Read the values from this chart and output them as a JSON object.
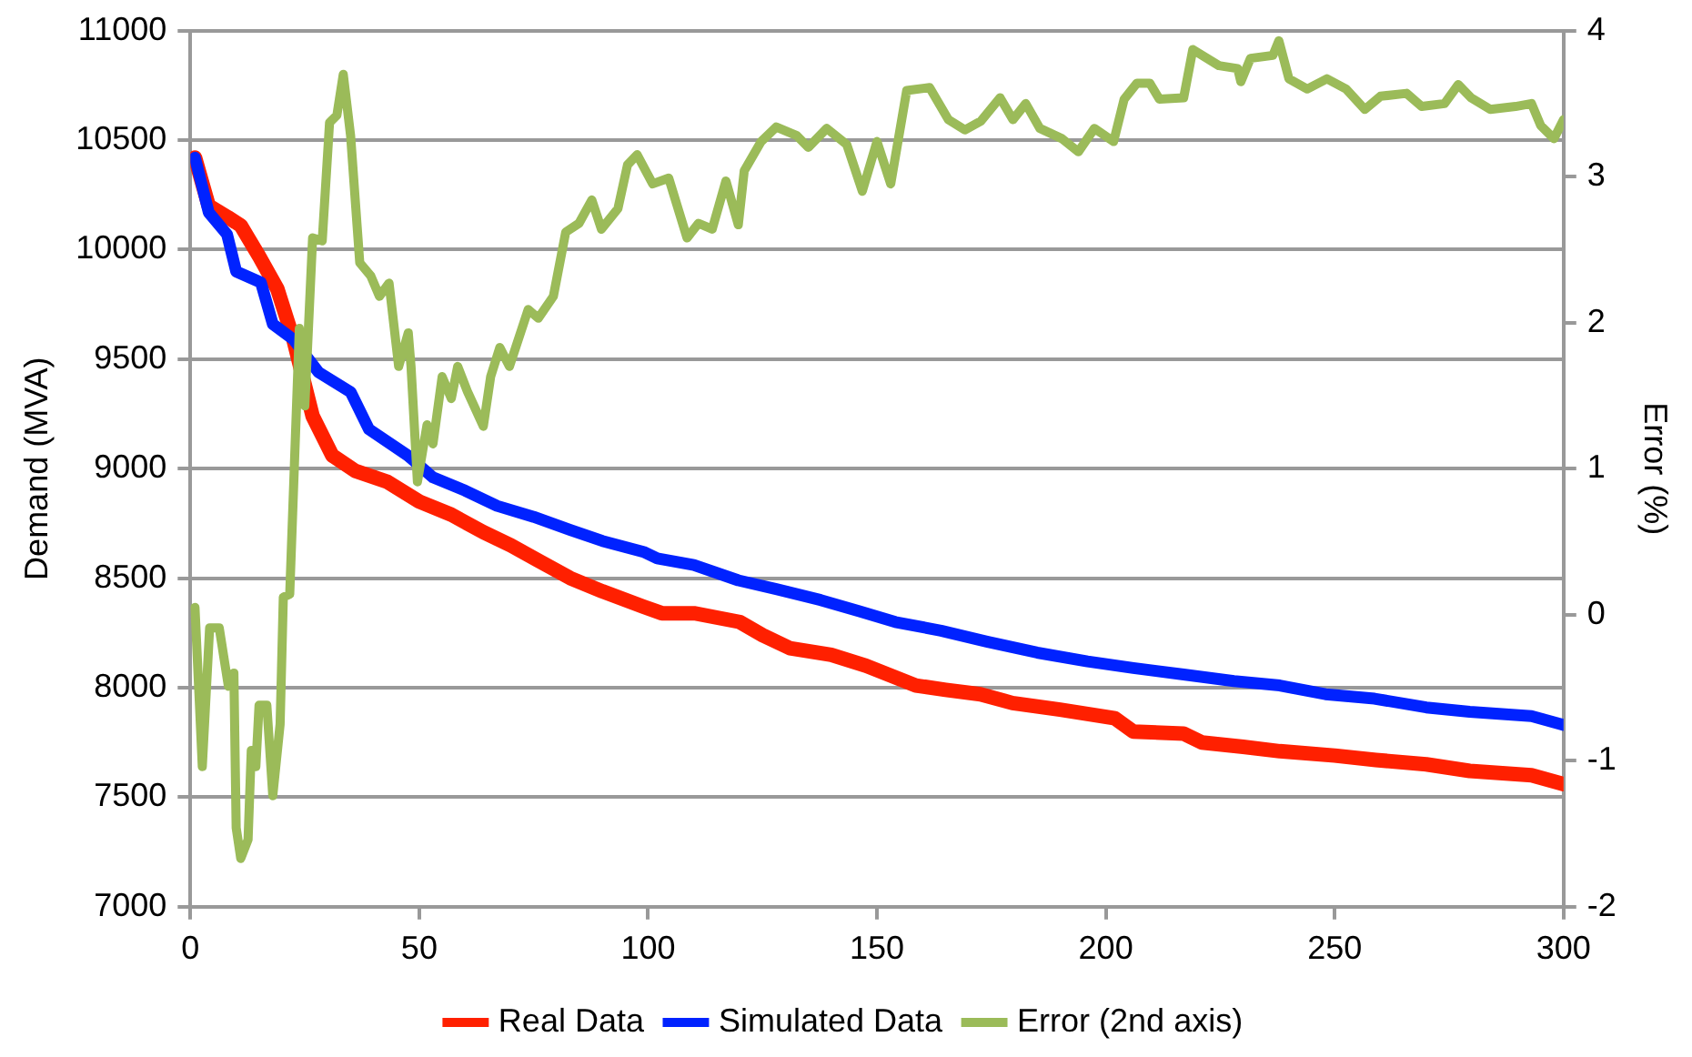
{
  "chart_data": {
    "type": "line",
    "xlabel": null,
    "ylabel": "Demand (MVA)",
    "y2label": "Error (%)",
    "xlim": [
      0,
      300
    ],
    "xticks": [
      0,
      50,
      100,
      150,
      200,
      250,
      300
    ],
    "ylim": [
      7000,
      11000
    ],
    "yticks": [
      7000,
      7500,
      8000,
      8500,
      9000,
      9500,
      10000,
      10500,
      11000
    ],
    "y2lim": [
      -2,
      4
    ],
    "y2ticks": [
      -2,
      -1,
      0,
      1,
      2,
      3,
      4
    ],
    "grid": "y",
    "legend": "bottom",
    "marker": "none",
    "line_style": "solid",
    "series": [
      {
        "name": "Real Data",
        "color": "#ff2000",
        "x": [
          1,
          4,
          8,
          11,
          15,
          19,
          22.5,
          26.7,
          31,
          36,
          43,
          50,
          57,
          64,
          70,
          76,
          83,
          90,
          99,
          103,
          110,
          120,
          125,
          131,
          140,
          147.6,
          158.5,
          165,
          172.6,
          179.6,
          190,
          202,
          206,
          217,
          221,
          230,
          238,
          250,
          259,
          270,
          279.5,
          293,
          300
        ],
        "values": [
          10420,
          10200,
          10150,
          10110,
          9970,
          9820,
          9590,
          9240,
          9060,
          8990,
          8940,
          8850,
          8790,
          8710,
          8650,
          8580,
          8500,
          8440,
          8370,
          8340,
          8340,
          8300,
          8240,
          8180,
          8150,
          8100,
          8010,
          7990,
          7970,
          7930,
          7900,
          7860,
          7800,
          7790,
          7750,
          7730,
          7710,
          7690,
          7670,
          7650,
          7620,
          7600,
          7560
        ]
      },
      {
        "name": "Simulated Data",
        "color": "#0022ff",
        "x": [
          1,
          4,
          8,
          10,
          15.4,
          18,
          22.5,
          28,
          35,
          39,
          47.5,
          53,
          60,
          67,
          75,
          83,
          90,
          99,
          102,
          110,
          119.7,
          128,
          137.7,
          146,
          154,
          164,
          174,
          185,
          196,
          206,
          217,
          228,
          238,
          248,
          258.7,
          270,
          279.5,
          293,
          300
        ],
        "values": [
          10420,
          10170,
          10070,
          9900,
          9850,
          9660,
          9590,
          9440,
          9350,
          9180,
          9060,
          8960,
          8900,
          8830,
          8780,
          8720,
          8670,
          8620,
          8590,
          8560,
          8490,
          8450,
          8400,
          8350,
          8300,
          8260,
          8210,
          8160,
          8120,
          8090,
          8060,
          8030,
          8010,
          7970,
          7950,
          7910,
          7890,
          7870,
          7830
        ]
      },
      {
        "name": "Error (2nd axis)",
        "color": "#9bbb59",
        "axis": "y2",
        "x": [
          1,
          2.6,
          4.2,
          6.3,
          8.3,
          9.5,
          10,
          11,
          12.6,
          13.3,
          14.3,
          15,
          16.7,
          18,
          19.6,
          20.3,
          21.7,
          23.8,
          25,
          26.7,
          28.8,
          30.4,
          32,
          33.4,
          35,
          37,
          39.4,
          41.3,
          43.4,
          45.5,
          47.6,
          48.2,
          49.6,
          51.7,
          53,
          55,
          57,
          58.4,
          60.5,
          64,
          65.6,
          67.6,
          69.7,
          73.8,
          76,
          79.3,
          82,
          84.9,
          87.7,
          89.8,
          93.4,
          95.5,
          97.6,
          101,
          104.5,
          108.5,
          111,
          114,
          117,
          119.7,
          121,
          124.7,
          128,
          132.5,
          135,
          139,
          143.4,
          146.8,
          150,
          153,
          156.5,
          161.5,
          165.6,
          169.2,
          172.7,
          176.9,
          179.7,
          182.5,
          185.6,
          190.4,
          194,
          197.5,
          201.7,
          204,
          206.8,
          209.6,
          211.7,
          217,
          219,
          224.7,
          228.8,
          229.5,
          231.6,
          236.5,
          237.8,
          240,
          244,
          248.3,
          252.5,
          256.6,
          260,
          265.7,
          269,
          274,
          277,
          279.8,
          284,
          289.5,
          293,
          295,
          297.9,
          300
        ],
        "values": [
          0.05,
          -1.04,
          -0.09,
          -0.09,
          -0.49,
          -0.4,
          -1.46,
          -1.67,
          -1.54,
          -0.93,
          -1.04,
          -0.62,
          -0.62,
          -1.24,
          -0.75,
          0.12,
          0.14,
          1.96,
          1.43,
          2.58,
          2.56,
          3.37,
          3.42,
          3.7,
          3.28,
          2.41,
          2.32,
          2.18,
          2.27,
          1.7,
          1.93,
          1.7,
          0.91,
          1.3,
          1.17,
          1.63,
          1.48,
          1.7,
          1.53,
          1.29,
          1.63,
          1.83,
          1.7,
          2.09,
          2.03,
          2.18,
          2.62,
          2.68,
          2.84,
          2.64,
          2.78,
          3.08,
          3.15,
          2.95,
          2.99,
          2.58,
          2.68,
          2.64,
          2.97,
          2.67,
          3.04,
          3.24,
          3.34,
          3.28,
          3.2,
          3.33,
          3.22,
          2.9,
          3.24,
          2.95,
          3.59,
          3.61,
          3.39,
          3.32,
          3.38,
          3.54,
          3.39,
          3.5,
          3.33,
          3.26,
          3.17,
          3.33,
          3.24,
          3.53,
          3.64,
          3.64,
          3.53,
          3.54,
          3.87,
          3.76,
          3.74,
          3.65,
          3.81,
          3.83,
          3.93,
          3.67,
          3.6,
          3.67,
          3.6,
          3.46,
          3.55,
          3.57,
          3.48,
          3.5,
          3.63,
          3.54,
          3.46,
          3.48,
          3.5,
          3.35,
          3.26,
          3.39
        ]
      }
    ]
  }
}
